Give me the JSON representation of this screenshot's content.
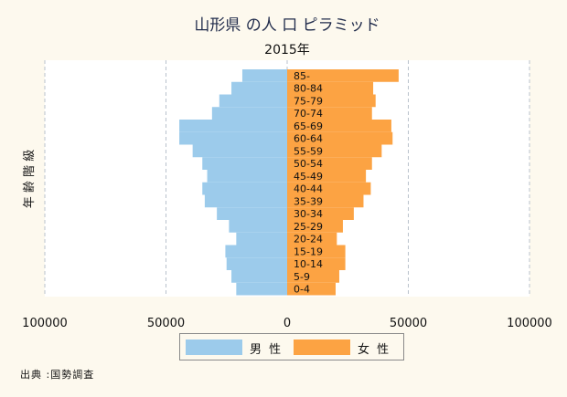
{
  "chart_data": {
    "type": "bar",
    "orientation": "horizontal-population-pyramid",
    "title": "山形県 の人 口 ピラミッド",
    "subtitle": "2015年",
    "ylabel": "年 齢 階 級",
    "xlim": [
      -100000,
      100000
    ],
    "x_ticks": [
      -100000,
      -50000,
      0,
      50000,
      100000
    ],
    "x_tick_labels": [
      "100000",
      "50000",
      "0",
      "50000",
      "100000"
    ],
    "grid": true,
    "legend_position": "bottom",
    "categories": [
      "0-4",
      "5-9",
      "10-14",
      "15-19",
      "20-24",
      "25-29",
      "30-34",
      "35-39",
      "40-44",
      "45-49",
      "50-54",
      "55-59",
      "60-64",
      "65-69",
      "70-74",
      "75-79",
      "80-84",
      "85-"
    ],
    "series": [
      {
        "name": "男 性",
        "color": "#9ccbeb",
        "side": "left",
        "values": [
          21000,
          23000,
          25000,
          25500,
          21000,
          24000,
          29000,
          34000,
          35000,
          33000,
          35000,
          39000,
          44500,
          44500,
          31000,
          28000,
          23000,
          18500
        ]
      },
      {
        "name": "女 性",
        "color": "#fca343",
        "side": "right",
        "values": [
          20000,
          21500,
          24000,
          24000,
          20500,
          23000,
          27500,
          31500,
          34500,
          32500,
          35000,
          39000,
          43500,
          43000,
          35000,
          36500,
          35500,
          46000
        ]
      }
    ]
  },
  "source_label": "出典 :国勢調査"
}
